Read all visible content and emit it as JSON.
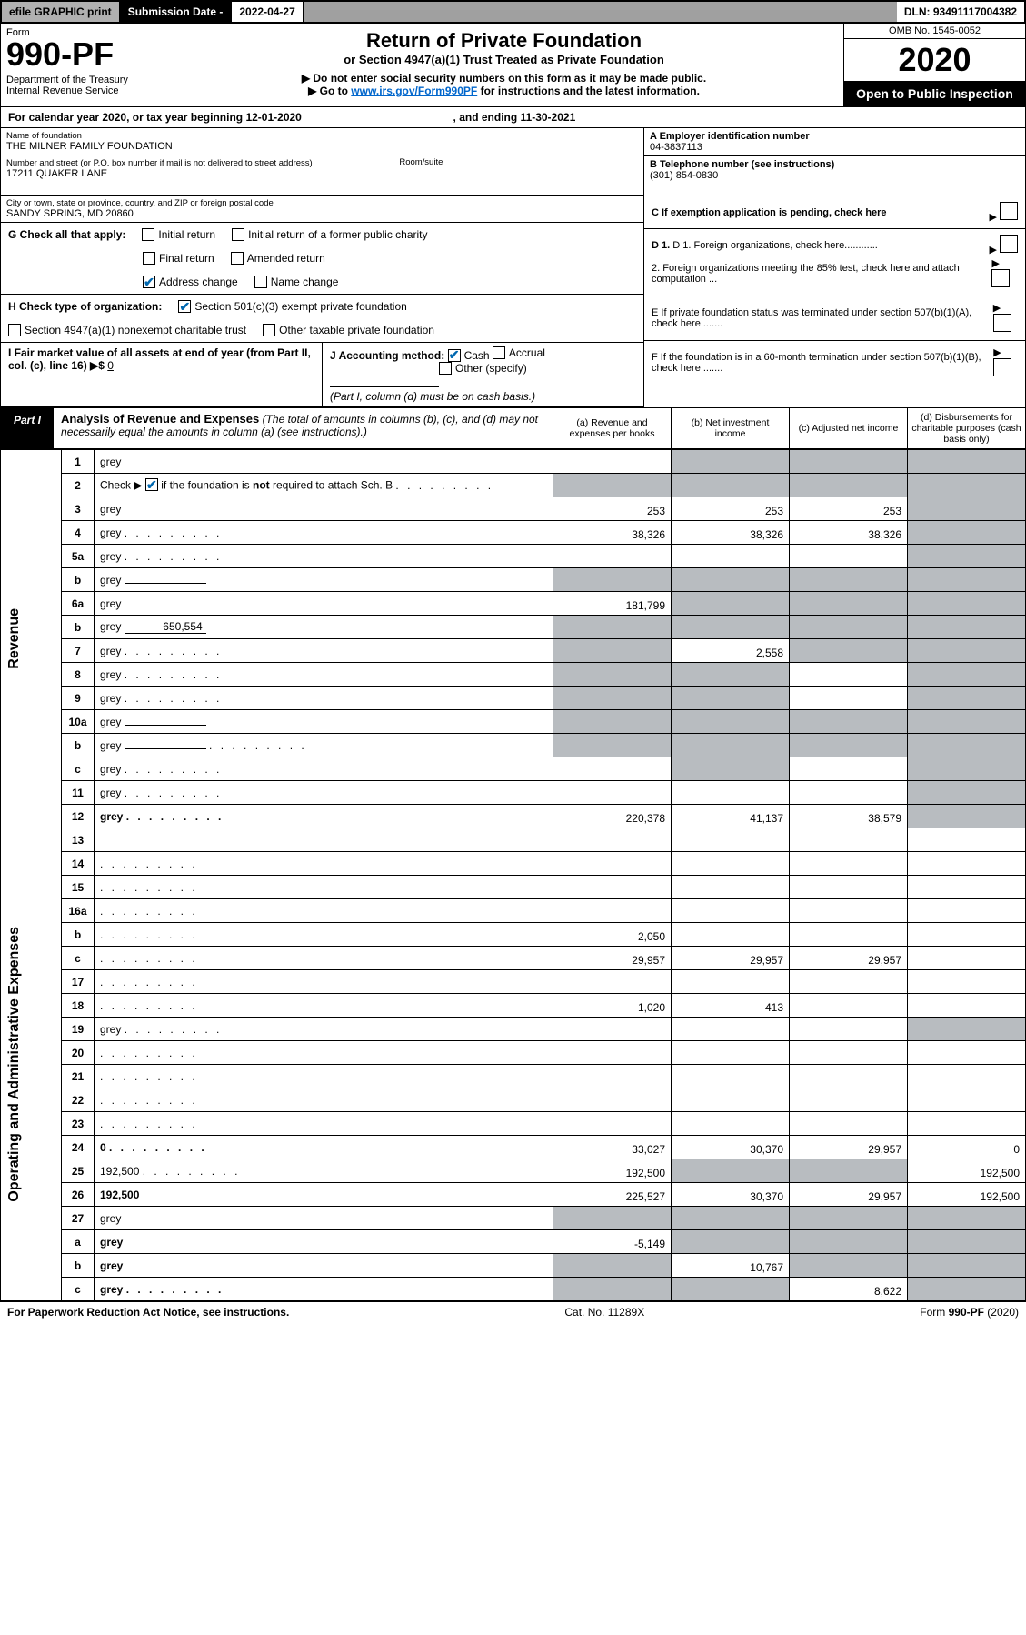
{
  "topbar": {
    "efile": "efile GRAPHIC print",
    "sub_label": "Submission Date - ",
    "sub_date": "2022-04-27",
    "dln": "DLN: 93491117004382"
  },
  "header": {
    "form_word": "Form",
    "form_no": "990-PF",
    "dept": "Department of the Treasury\nInternal Revenue Service",
    "title": "Return of Private Foundation",
    "subtitle": "or Section 4947(a)(1) Trust Treated as Private Foundation",
    "instr1": "▶ Do not enter social security numbers on this form as it may be made public.",
    "instr2_pre": "▶ Go to ",
    "instr2_link": "www.irs.gov/Form990PF",
    "instr2_post": " for instructions and the latest information.",
    "omb": "OMB No. 1545-0052",
    "year": "2020",
    "open": "Open to Public Inspection"
  },
  "calyear": {
    "text_pre": "For calendar year 2020, or tax year beginning ",
    "begin": "12-01-2020",
    "mid": " , and ending ",
    "end": "11-30-2021"
  },
  "entity": {
    "name_label": "Name of foundation",
    "name": "THE MILNER FAMILY FOUNDATION",
    "addr_label": "Number and street (or P.O. box number if mail is not delivered to street address)",
    "addr": "17211 QUAKER LANE",
    "room_label": "Room/suite",
    "city_label": "City or town, state or province, country, and ZIP or foreign postal code",
    "city": "SANDY SPRING, MD  20860",
    "ein_label": "A Employer identification number",
    "ein": "04-3837113",
    "phone_label": "B Telephone number (see instructions)",
    "phone": "(301) 854-0830",
    "c_label": "C If exemption application is pending, check here",
    "d1": "D 1. Foreign organizations, check here............",
    "d2": "2. Foreign organizations meeting the 85% test, check here and attach computation ...",
    "e": "E  If private foundation status was terminated under section 507(b)(1)(A), check here .......",
    "f": "F  If the foundation is in a 60-month termination under section 507(b)(1)(B), check here .......",
    "g_label": "G Check all that apply:",
    "g_opts": [
      "Initial return",
      "Initial return of a former public charity",
      "Final return",
      "Amended return",
      "Address change",
      "Name change"
    ],
    "h_label": "H Check type of organization:",
    "h_opts": [
      "Section 501(c)(3) exempt private foundation",
      "Section 4947(a)(1) nonexempt charitable trust",
      "Other taxable private foundation"
    ],
    "i_label": "I Fair market value of all assets at end of year (from Part II, col. (c), line 16) ▶$ ",
    "i_val": "0",
    "j_label": "J Accounting method:",
    "j_opts": [
      "Cash",
      "Accrual",
      "Other (specify)"
    ],
    "j_note": "(Part I, column (d) must be on cash basis.)"
  },
  "part1": {
    "label": "Part I",
    "title": "Analysis of Revenue and Expenses",
    "title_note": " (The total of amounts in columns (b), (c), and (d) may not necessarily equal the amounts in column (a) (see instructions).)",
    "cols": {
      "a": "(a)  Revenue and expenses per books",
      "b": "(b)  Net investment income",
      "c": "(c)  Adjusted net income",
      "d": "(d)  Disbursements for charitable purposes (cash basis only)"
    }
  },
  "sides": {
    "rev": "Revenue",
    "exp": "Operating and Administrative Expenses"
  },
  "rows": [
    {
      "n": "1",
      "d": "grey",
      "a": "",
      "b": "grey",
      "c": "grey"
    },
    {
      "n": "2",
      "d": "grey",
      "dots": true,
      "a": "grey",
      "b": "grey",
      "c": "grey",
      "ck": true
    },
    {
      "n": "3",
      "d": "grey",
      "a": "253",
      "b": "253",
      "c": "253"
    },
    {
      "n": "4",
      "d": "grey",
      "dots": true,
      "a": "38,326",
      "b": "38,326",
      "c": "38,326"
    },
    {
      "n": "5a",
      "d": "grey",
      "dots": true,
      "a": "",
      "b": "",
      "c": ""
    },
    {
      "n": "b",
      "d": "grey",
      "inline": "",
      "a": "grey",
      "b": "grey",
      "c": "grey"
    },
    {
      "n": "6a",
      "d": "grey",
      "a": "181,799",
      "b": "grey",
      "c": "grey"
    },
    {
      "n": "b",
      "d": "grey",
      "inline": "650,554",
      "a": "grey",
      "b": "grey",
      "c": "grey"
    },
    {
      "n": "7",
      "d": "grey",
      "dots": true,
      "a": "grey",
      "b": "2,558",
      "c": "grey"
    },
    {
      "n": "8",
      "d": "grey",
      "dots": true,
      "a": "grey",
      "b": "grey",
      "c": ""
    },
    {
      "n": "9",
      "d": "grey",
      "dots": true,
      "a": "grey",
      "b": "grey",
      "c": ""
    },
    {
      "n": "10a",
      "d": "grey",
      "inline": "",
      "a": "grey",
      "b": "grey",
      "c": "grey"
    },
    {
      "n": "b",
      "d": "grey",
      "dots": true,
      "inline": "",
      "a": "grey",
      "b": "grey",
      "c": "grey"
    },
    {
      "n": "c",
      "d": "grey",
      "dots": true,
      "a": "",
      "b": "grey",
      "c": ""
    },
    {
      "n": "11",
      "d": "grey",
      "dots": true,
      "a": "",
      "b": "",
      "c": ""
    },
    {
      "n": "12",
      "d": "grey",
      "dots": true,
      "bold": true,
      "a": "220,378",
      "b": "41,137",
      "c": "38,579"
    },
    {
      "n": "13",
      "d": "",
      "a": "",
      "b": "",
      "c": ""
    },
    {
      "n": "14",
      "d": "",
      "dots": true,
      "a": "",
      "b": "",
      "c": ""
    },
    {
      "n": "15",
      "d": "",
      "dots": true,
      "a": "",
      "b": "",
      "c": ""
    },
    {
      "n": "16a",
      "d": "",
      "dots": true,
      "a": "",
      "b": "",
      "c": ""
    },
    {
      "n": "b",
      "d": "",
      "dots": true,
      "a": "2,050",
      "b": "",
      "c": ""
    },
    {
      "n": "c",
      "d": "",
      "dots": true,
      "a": "29,957",
      "b": "29,957",
      "c": "29,957"
    },
    {
      "n": "17",
      "d": "",
      "dots": true,
      "a": "",
      "b": "",
      "c": ""
    },
    {
      "n": "18",
      "d": "",
      "dots": true,
      "a": "1,020",
      "b": "413",
      "c": ""
    },
    {
      "n": "19",
      "d": "grey",
      "dots": true,
      "a": "",
      "b": "",
      "c": ""
    },
    {
      "n": "20",
      "d": "",
      "dots": true,
      "a": "",
      "b": "",
      "c": ""
    },
    {
      "n": "21",
      "d": "",
      "dots": true,
      "a": "",
      "b": "",
      "c": ""
    },
    {
      "n": "22",
      "d": "",
      "dots": true,
      "a": "",
      "b": "",
      "c": ""
    },
    {
      "n": "23",
      "d": "",
      "dots": true,
      "a": "",
      "b": "",
      "c": ""
    },
    {
      "n": "24",
      "d": "0",
      "dots": true,
      "bold": true,
      "a": "33,027",
      "b": "30,370",
      "c": "29,957"
    },
    {
      "n": "25",
      "d": "192,500",
      "dots": true,
      "a": "192,500",
      "b": "grey",
      "c": "grey"
    },
    {
      "n": "26",
      "d": "192,500",
      "bold": true,
      "a": "225,527",
      "b": "30,370",
      "c": "29,957"
    },
    {
      "n": "27",
      "d": "grey",
      "a": "grey",
      "b": "grey",
      "c": "grey"
    },
    {
      "n": "a",
      "d": "grey",
      "bold": true,
      "a": "-5,149",
      "b": "grey",
      "c": "grey"
    },
    {
      "n": "b",
      "d": "grey",
      "bold": true,
      "a": "grey",
      "b": "10,767",
      "c": "grey"
    },
    {
      "n": "c",
      "d": "grey",
      "dots": true,
      "bold": true,
      "a": "grey",
      "b": "grey",
      "c": "8,622"
    }
  ],
  "footer": {
    "left": "For Paperwork Reduction Act Notice, see instructions.",
    "mid": "Cat. No. 11289X",
    "right": "Form 990-PF (2020)"
  }
}
